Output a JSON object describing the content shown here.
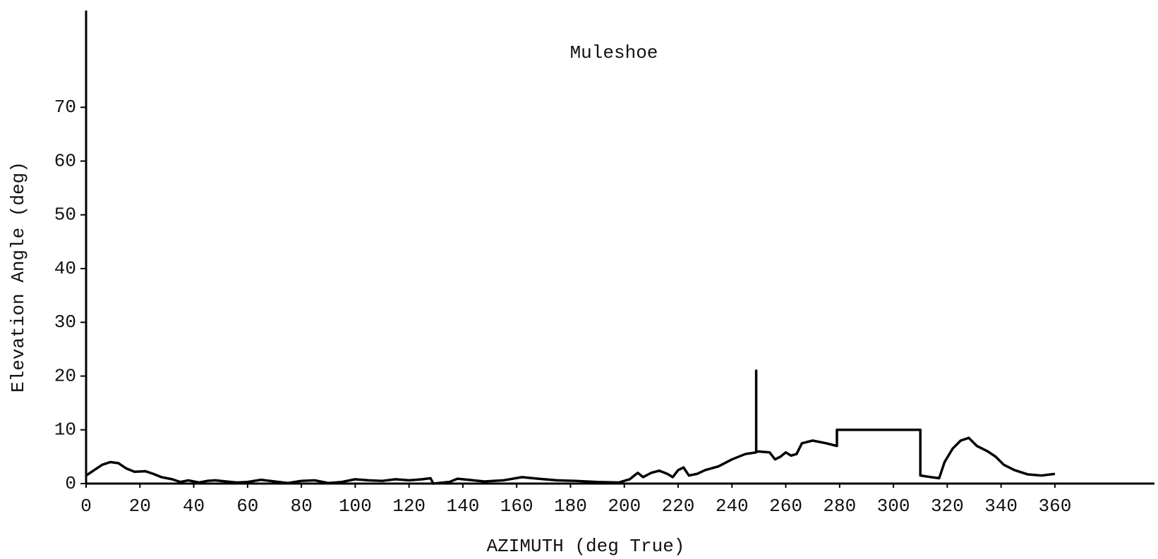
{
  "chart_data": {
    "type": "line",
    "title": "Muleshoe",
    "x_label": "AZIMUTH (deg True)",
    "y_label": "Elevation Angle (deg)",
    "xlim": [
      0,
      397
    ],
    "ylim": [
      0,
      88
    ],
    "xticks": [
      0,
      20,
      40,
      60,
      80,
      100,
      120,
      140,
      160,
      180,
      200,
      220,
      240,
      260,
      280,
      300,
      320,
      340,
      360
    ],
    "yticks": [
      0,
      10,
      20,
      30,
      40,
      50,
      60,
      70
    ],
    "grid": false,
    "series": [
      {
        "name": "Muleshoe",
        "color": "#000000",
        "x": [
          0,
          3,
          6,
          9,
          12,
          15,
          18,
          22,
          25,
          28,
          32,
          35,
          38,
          42,
          45,
          48,
          52,
          56,
          60,
          65,
          70,
          75,
          80,
          85,
          90,
          95,
          100,
          105,
          110,
          115,
          120,
          125,
          128,
          129,
          135,
          138,
          142,
          148,
          155,
          162,
          168,
          175,
          182,
          190,
          198,
          202,
          205,
          207,
          210,
          213,
          216,
          218,
          220,
          222,
          224,
          227,
          230,
          235,
          240,
          245,
          249,
          249,
          249,
          254,
          256,
          258,
          260,
          262,
          264,
          266,
          270,
          275,
          279,
          279,
          310,
          310,
          314,
          317,
          319,
          322,
          325,
          328,
          331,
          335,
          338,
          341,
          345,
          350,
          355,
          360
        ],
        "values": [
          1.5,
          2.5,
          3.5,
          4,
          3.8,
          2.8,
          2.2,
          2.3,
          1.8,
          1.2,
          0.8,
          0.3,
          0.6,
          0.2,
          0.5,
          0.6,
          0.4,
          0.2,
          0.3,
          0.7,
          0.4,
          0.1,
          0.5,
          0.6,
          0.1,
          0.3,
          0.8,
          0.6,
          0.5,
          0.8,
          0.6,
          0.8,
          1.0,
          0,
          0.3,
          0.9,
          0.7,
          0.4,
          0.6,
          1.2,
          0.9,
          0.6,
          0.5,
          0.3,
          0.2,
          0.8,
          2,
          1.2,
          2,
          2.4,
          1.8,
          1.2,
          2.5,
          3,
          1.5,
          1.8,
          2.5,
          3.2,
          4.5,
          5.5,
          5.8,
          21,
          6,
          5.8,
          4.5,
          5,
          5.8,
          5.2,
          5.5,
          7.5,
          8,
          7.5,
          7,
          10,
          10,
          1.5,
          1.2,
          1,
          4,
          6.5,
          8,
          8.5,
          7,
          6,
          5,
          3.5,
          2.5,
          1.7,
          1.5,
          1.8
        ]
      }
    ]
  }
}
